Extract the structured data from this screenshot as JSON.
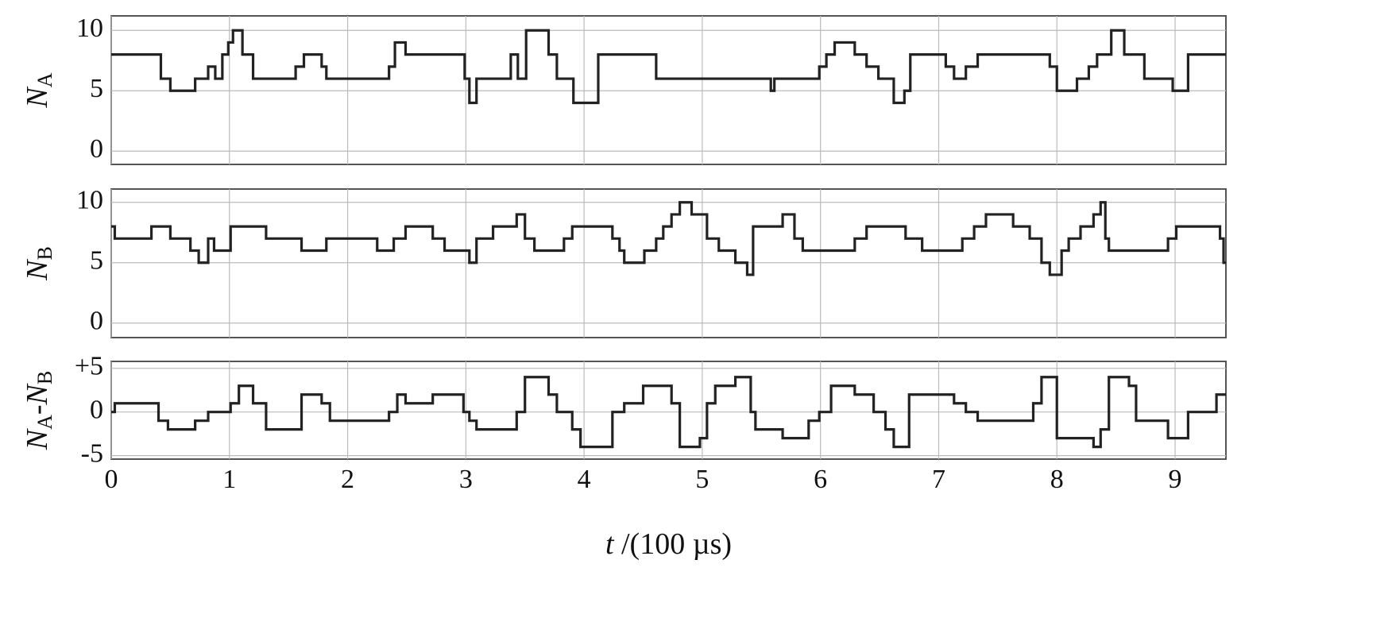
{
  "chart_data": [
    {
      "type": "line",
      "step": true,
      "ylabel": [
        "N",
        "A"
      ],
      "xlim": [
        0,
        9.43
      ],
      "xticks": [
        0,
        1,
        2,
        3,
        4,
        5,
        6,
        7,
        8,
        9
      ],
      "ylim": [
        -1.1,
        11.2
      ],
      "yticks": [
        0,
        5,
        10
      ],
      "grid": true,
      "series": [
        {
          "name": "NA",
          "color": "#222222",
          "x": [
            0,
            0.42,
            0.5,
            0.71,
            0.82,
            0.88,
            0.94,
            0.99,
            1.03,
            1.11,
            1.2,
            1.56,
            1.63,
            1.78,
            1.82,
            2.35,
            2.4,
            2.49,
            2.99,
            3.03,
            3.09,
            3.38,
            3.44,
            3.51,
            3.7,
            3.77,
            3.91,
            4.12,
            4.61,
            5.58,
            5.61,
            5.99,
            6.05,
            6.12,
            6.29,
            6.39,
            6.49,
            6.62,
            6.71,
            6.76,
            7.06,
            7.13,
            7.23,
            7.33,
            7.94,
            8.0,
            8.17,
            8.27,
            8.34,
            8.46,
            8.57,
            8.74,
            8.98,
            9.11,
            9.43
          ],
          "values": [
            8,
            6,
            5,
            6,
            7,
            6,
            8,
            9,
            10,
            8,
            6,
            7,
            8,
            7,
            6,
            7,
            9,
            8,
            6,
            4,
            6,
            8,
            6,
            10,
            8,
            6,
            4,
            8,
            6,
            5,
            6,
            7,
            8,
            9,
            8,
            7,
            6,
            4,
            5,
            8,
            7,
            6,
            7,
            8,
            7,
            5,
            6,
            7,
            8,
            10,
            8,
            6,
            5,
            8,
            8
          ]
        }
      ]
    },
    {
      "type": "line",
      "step": true,
      "ylabel": [
        "N",
        "B"
      ],
      "xlim": [
        0,
        9.43
      ],
      "xticks": [
        0,
        1,
        2,
        3,
        4,
        5,
        6,
        7,
        8,
        9
      ],
      "ylim": [
        -1.2,
        11.1
      ],
      "yticks": [
        0,
        5,
        10
      ],
      "grid": true,
      "series": [
        {
          "name": "NB",
          "color": "#222222",
          "x": [
            0,
            0.03,
            0.34,
            0.5,
            0.67,
            0.74,
            0.82,
            0.87,
            1.01,
            1.31,
            1.61,
            1.82,
            2.25,
            2.39,
            2.49,
            2.72,
            2.82,
            3.03,
            3.09,
            3.23,
            3.43,
            3.5,
            3.58,
            3.83,
            3.9,
            4.24,
            4.3,
            4.34,
            4.51,
            4.61,
            4.67,
            4.74,
            4.81,
            4.91,
            5.04,
            5.14,
            5.28,
            5.38,
            5.43,
            5.68,
            5.78,
            5.85,
            6.29,
            6.39,
            6.72,
            6.86,
            7.2,
            7.3,
            7.4,
            7.63,
            7.77,
            7.87,
            7.94,
            8.04,
            8.1,
            8.2,
            8.31,
            8.37,
            8.41,
            8.44,
            8.94,
            9.01,
            9.38,
            9.41,
            9.43
          ],
          "values": [
            8,
            7,
            8,
            7,
            6,
            5,
            7,
            6,
            8,
            7,
            6,
            7,
            6,
            7,
            8,
            7,
            6,
            5,
            7,
            8,
            9,
            7,
            6,
            7,
            8,
            7,
            6,
            5,
            6,
            7,
            8,
            9,
            10,
            9,
            7,
            6,
            5,
            4,
            8,
            9,
            7,
            6,
            7,
            8,
            7,
            6,
            7,
            8,
            9,
            8,
            7,
            5,
            4,
            6,
            7,
            8,
            9,
            10,
            7,
            6,
            7,
            8,
            7,
            5,
            5
          ]
        }
      ]
    },
    {
      "type": "line",
      "step": true,
      "ylabel": [
        "N",
        "A",
        "-N",
        "B"
      ],
      "xlabel": [
        "t",
        " /(100 µs)"
      ],
      "xlim": [
        0,
        9.43
      ],
      "xticks": [
        0,
        1,
        2,
        3,
        4,
        5,
        6,
        7,
        8,
        9
      ],
      "ylim": [
        -5.4,
        5.8
      ],
      "yticks": [
        -5,
        0,
        {
          "value": 5,
          "label": "+5"
        }
      ],
      "grid": true,
      "series": [
        {
          "name": "NA-NB",
          "color": "#222222",
          "x": [
            0,
            0.03,
            0.4,
            0.48,
            0.71,
            0.82,
            1.01,
            1.08,
            1.2,
            1.31,
            1.61,
            1.78,
            1.85,
            2.35,
            2.42,
            2.49,
            2.72,
            2.98,
            3.03,
            3.09,
            3.43,
            3.5,
            3.7,
            3.77,
            3.9,
            3.97,
            4.24,
            4.34,
            4.5,
            4.74,
            4.81,
            4.98,
            5.04,
            5.11,
            5.28,
            5.41,
            5.45,
            5.68,
            5.9,
            5.99,
            6.09,
            6.29,
            6.45,
            6.55,
            6.62,
            6.75,
            7.13,
            7.23,
            7.33,
            7.8,
            7.87,
            8.0,
            8.31,
            8.37,
            8.44,
            8.61,
            8.67,
            8.94,
            9.11,
            9.35,
            9.43
          ],
          "values": [
            0,
            1,
            -1,
            -2,
            -1,
            0,
            1,
            3,
            1,
            -2,
            2,
            1,
            -1,
            0,
            2,
            1,
            2,
            0,
            -1,
            -2,
            0,
            4,
            2,
            0,
            -2,
            -4,
            0,
            1,
            3,
            1,
            -4,
            -3,
            1,
            3,
            4,
            0,
            -2,
            -3,
            -1,
            0,
            3,
            2,
            0,
            -2,
            -4,
            2,
            1,
            0,
            -1,
            1,
            4,
            -3,
            -4,
            -2,
            4,
            3,
            -1,
            -3,
            0,
            2,
            2
          ]
        }
      ]
    }
  ]
}
